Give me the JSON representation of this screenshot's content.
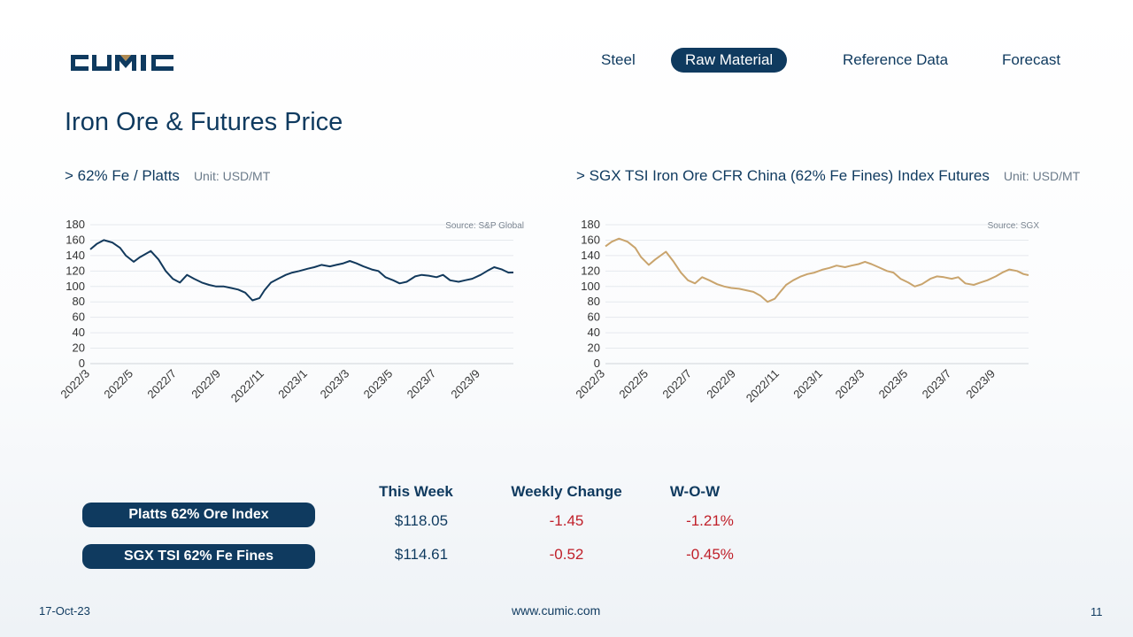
{
  "brand": {
    "name": "CUMIC",
    "color_primary": "#0f3a5f",
    "color_accent": "#b08a52"
  },
  "nav": {
    "items": [
      {
        "label": "Steel",
        "active": false
      },
      {
        "label": "Raw Material",
        "active": true
      },
      {
        "label": "Reference Data",
        "active": false
      },
      {
        "label": "Forecast",
        "active": false
      }
    ]
  },
  "page": {
    "title": "Iron Ore & Futures Price"
  },
  "sections": [
    {
      "heading": "> 62% Fe / Platts",
      "unit": "Unit: USD/MT"
    },
    {
      "heading": "> SGX TSI Iron Ore CFR China (62% Fe Fines) Index Futures",
      "unit": "Unit: USD/MT"
    }
  ],
  "chart_data": [
    {
      "type": "line",
      "source": "Source: S&P Global",
      "color": "#12395c",
      "ylim": [
        0,
        180
      ],
      "yticks": [
        "0",
        "20",
        "40",
        "60",
        "80",
        "100",
        "120",
        "140",
        "160",
        "180"
      ],
      "xticks": [
        "2022/3",
        "2022/5",
        "2022/7",
        "2022/9",
        "2022/11",
        "2023/1",
        "2023/3",
        "2023/5",
        "2023/7",
        "2023/9"
      ],
      "x_range": [
        "2022-03-01",
        "2023-10-17"
      ],
      "series": [
        {
          "x": [
            "2022-03-01",
            "2022-03-10",
            "2022-03-20",
            "2022-04-01",
            "2022-04-12",
            "2022-04-20",
            "2022-05-01",
            "2022-05-10",
            "2022-05-25",
            "2022-06-05",
            "2022-06-15",
            "2022-06-25",
            "2022-07-05",
            "2022-07-15",
            "2022-07-25",
            "2022-08-05",
            "2022-08-15",
            "2022-08-25",
            "2022-09-05",
            "2022-09-15",
            "2022-09-25",
            "2022-10-05",
            "2022-10-15",
            "2022-10-25",
            "2022-11-01",
            "2022-11-10",
            "2022-11-20",
            "2022-12-01",
            "2022-12-10",
            "2022-12-20",
            "2023-01-01",
            "2023-01-10",
            "2023-01-20",
            "2023-02-01",
            "2023-02-10",
            "2023-02-20",
            "2023-03-01",
            "2023-03-10",
            "2023-03-20",
            "2023-04-01",
            "2023-04-10",
            "2023-04-20",
            "2023-05-01",
            "2023-05-10",
            "2023-05-20",
            "2023-06-01",
            "2023-06-10",
            "2023-06-20",
            "2023-07-01",
            "2023-07-10",
            "2023-07-20",
            "2023-08-01",
            "2023-08-10",
            "2023-08-20",
            "2023-09-01",
            "2023-09-10",
            "2023-09-20",
            "2023-10-01",
            "2023-10-10",
            "2023-10-17"
          ],
          "y": [
            148,
            155,
            160,
            157,
            150,
            140,
            132,
            138,
            146,
            135,
            120,
            110,
            105,
            115,
            110,
            105,
            102,
            100,
            100,
            98,
            96,
            92,
            82,
            85,
            95,
            105,
            110,
            115,
            118,
            120,
            123,
            125,
            128,
            126,
            128,
            130,
            133,
            130,
            126,
            122,
            120,
            112,
            108,
            104,
            106,
            113,
            115,
            114,
            112,
            115,
            108,
            106,
            108,
            110,
            115,
            120,
            125,
            122,
            118,
            118.05
          ]
        }
      ]
    },
    {
      "type": "line",
      "source": "Source: SGX",
      "color": "#c9a46d",
      "ylim": [
        0,
        180
      ],
      "yticks": [
        "0",
        "20",
        "40",
        "60",
        "80",
        "100",
        "120",
        "140",
        "160",
        "180"
      ],
      "xticks": [
        "2022/3",
        "2022/5",
        "2022/7",
        "2022/9",
        "2022/11",
        "2023/1",
        "2023/3",
        "2023/5",
        "2023/7",
        "2023/9"
      ],
      "x_range": [
        "2022-03-01",
        "2023-10-17"
      ],
      "series": [
        {
          "x": [
            "2022-03-01",
            "2022-03-10",
            "2022-03-20",
            "2022-04-01",
            "2022-04-12",
            "2022-04-20",
            "2022-05-01",
            "2022-05-10",
            "2022-05-25",
            "2022-06-05",
            "2022-06-15",
            "2022-06-25",
            "2022-07-05",
            "2022-07-15",
            "2022-07-25",
            "2022-08-05",
            "2022-08-15",
            "2022-08-25",
            "2022-09-05",
            "2022-09-15",
            "2022-09-25",
            "2022-10-05",
            "2022-10-15",
            "2022-10-25",
            "2022-11-01",
            "2022-11-10",
            "2022-11-20",
            "2022-12-01",
            "2022-12-10",
            "2022-12-20",
            "2023-01-01",
            "2023-01-10",
            "2023-01-20",
            "2023-02-01",
            "2023-02-10",
            "2023-02-20",
            "2023-03-01",
            "2023-03-10",
            "2023-03-20",
            "2023-04-01",
            "2023-04-10",
            "2023-04-20",
            "2023-05-01",
            "2023-05-10",
            "2023-05-20",
            "2023-06-01",
            "2023-06-10",
            "2023-06-20",
            "2023-07-01",
            "2023-07-10",
            "2023-07-20",
            "2023-08-01",
            "2023-08-10",
            "2023-08-20",
            "2023-09-01",
            "2023-09-10",
            "2023-09-20",
            "2023-10-01",
            "2023-10-10",
            "2023-10-17"
          ],
          "y": [
            152,
            158,
            162,
            158,
            150,
            138,
            128,
            135,
            145,
            132,
            118,
            108,
            104,
            112,
            108,
            103,
            100,
            98,
            97,
            95,
            93,
            88,
            80,
            84,
            92,
            102,
            108,
            113,
            116,
            118,
            122,
            124,
            127,
            125,
            127,
            129,
            132,
            129,
            125,
            120,
            118,
            110,
            105,
            100,
            103,
            110,
            113,
            112,
            110,
            112,
            104,
            102,
            105,
            108,
            113,
            118,
            122,
            120,
            116,
            114.61
          ]
        }
      ]
    }
  ],
  "table": {
    "headers": [
      "This Week",
      "Weekly Change",
      "W-O-W"
    ],
    "rows": [
      {
        "label": "Platts 62% Ore Index",
        "this_week": "$118.05",
        "change": "-1.45",
        "wow": "-1.21%"
      },
      {
        "label": "SGX TSI 62% Fe Fines",
        "this_week": "$114.61",
        "change": "-0.52",
        "wow": "-0.45%"
      }
    ]
  },
  "footer": {
    "date": "17-Oct-23",
    "website": "www.cumic.com",
    "page_number": "11"
  }
}
